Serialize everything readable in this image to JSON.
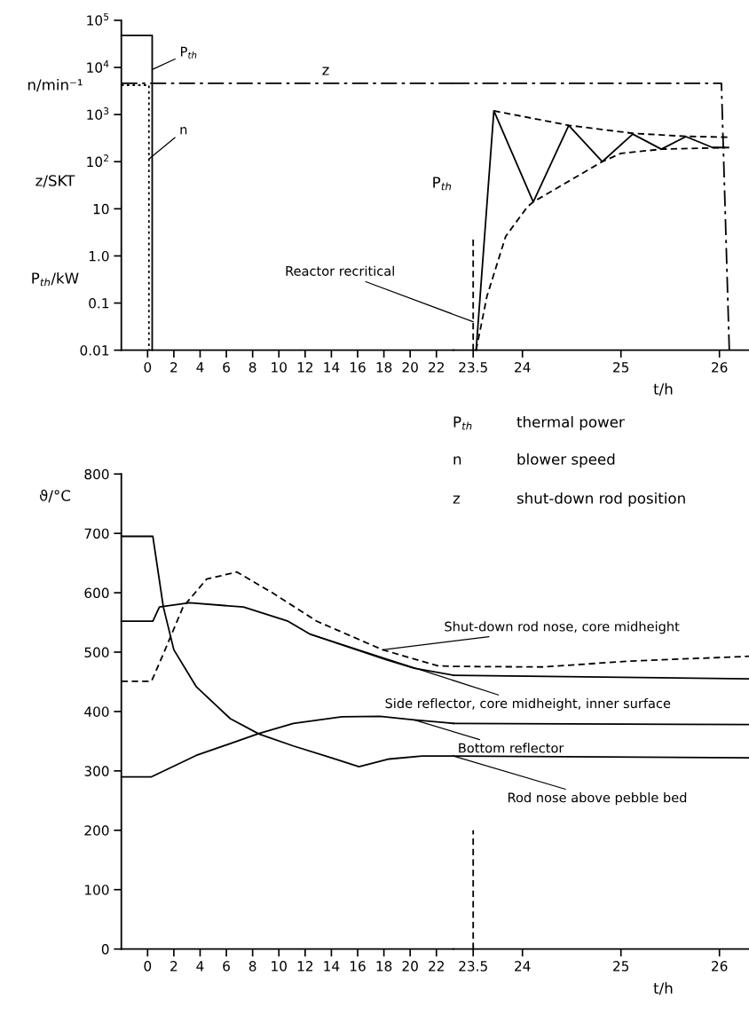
{
  "chart_data": [
    {
      "type": "line",
      "log": "y",
      "xlim": [
        -2,
        23.3
      ],
      "ylim": [
        0.01,
        100000
      ],
      "xticks": [
        0,
        2,
        4,
        6,
        8,
        10,
        12,
        14,
        16,
        18,
        20,
        22
      ],
      "yticks": [
        {
          "value": 0.01,
          "label": "0.01"
        },
        0.1,
        {
          "value": 1,
          "label": "1.0"
        },
        10,
        {
          "value": 100,
          "label": "10$^{2}$"
        },
        {
          "value": 1000,
          "label": "10$^{3}$"
        },
        {
          "value": 10000,
          "label": "10$^{4}$"
        },
        {
          "value": 100000,
          "label": "10$^{5}$"
        }
      ],
      "marker": "none",
      "series": [
        {
          "color": "#000000",
          "line_style": "solid",
          "x": [
            -2,
            0.35,
            0.35
          ],
          "values": [
            48000,
            48000,
            0.01
          ]
        },
        {
          "color": "#000000",
          "line_style": "dotted",
          "x": [
            -2,
            0.1,
            0.1
          ],
          "values": [
            4200,
            4200,
            0.01
          ]
        },
        {
          "color": "#000000",
          "line_style": "dashdot",
          "x": [
            -2,
            23.3
          ],
          "values": [
            4600,
            4600
          ]
        }
      ],
      "annotations": [
        "n/min⁻¹",
        "z/SKT",
        "P$_{th}$/kW",
        "z",
        "P$_{th}$",
        {
          "text": "P$_{th}$",
          "x": 0.35,
          "y": 9000
        },
        {
          "text": "n",
          "x": 0.1,
          "y": 114
        }
      ]
    },
    {
      "type": "line",
      "log": "y",
      "xlim": [
        23.3,
        26.3
      ],
      "ylim": [
        0.01,
        100000
      ],
      "tick_labels": "x",
      "xticks": [
        23.5,
        24,
        25,
        26
      ],
      "xlabel": "t/h",
      "marker": "none",
      "series": [
        {
          "color": "#000000",
          "line_style": "solid",
          "x": [
            23.53,
            23.71,
            24.11,
            24.47,
            24.81,
            25.12,
            25.41,
            25.66,
            25.93,
            26.05
          ],
          "values": [
            0.01,
            1200,
            14,
            590,
            100,
            385,
            184,
            340,
            200,
            200
          ]
        },
        {
          "color": "#000000",
          "line_style": "dashdot",
          "x": [
            23.3,
            26.02,
            26.1
          ],
          "values": [
            4600,
            4600,
            0.01
          ]
        },
        {
          "color": "#000000",
          "line_style": "dashed",
          "x": [
            23.71,
            24.47,
            25.12,
            25.66,
            26.1
          ],
          "values": [
            1200,
            590,
            400,
            345,
            330
          ]
        },
        {
          "color": "#000000",
          "line_style": "dashed",
          "x": [
            23.53,
            23.64,
            23.83,
            24.05,
            24.11,
            24.81,
            25.0,
            25.41,
            26.1
          ],
          "values": [
            0.01,
            0.14,
            2.6,
            11,
            14,
            100,
            150,
            184,
            200
          ]
        }
      ],
      "ref_lines": [
        {
          "axis": "x",
          "value": 23.5,
          "line_style": "dashed",
          "color": "#000000"
        }
      ],
      "annotations": [
        "P$_{th}$",
        "thermal power",
        "n",
        "blower speed",
        "z",
        "shut-down rod position",
        {
          "text": "Reactor recritical",
          "x": 23.5,
          "y": 0.04
        }
      ]
    },
    {
      "type": "line",
      "xlim": [
        -2,
        23.3
      ],
      "ylim": [
        0,
        800
      ],
      "xticks": [
        0,
        2,
        4,
        6,
        8,
        10,
        12,
        14,
        16,
        18,
        20,
        22
      ],
      "yticks": [
        0,
        100,
        200,
        300,
        400,
        500,
        600,
        700,
        800
      ],
      "ylabel": "ϑ/°C",
      "marker": "none",
      "series": [
        {
          "color": "#000000",
          "line_style": "solid",
          "x": [
            -2,
            0.4,
            1.2,
            2.0,
            3.7,
            6.3,
            8.5,
            11.1,
            14,
            16.1,
            18.4,
            20.9,
            23.3
          ],
          "values": [
            695,
            695,
            576,
            504,
            442,
            388,
            362,
            342,
            322,
            307,
            320,
            325,
            325
          ]
        },
        {
          "color": "#000000",
          "line_style": "solid",
          "x": [
            -2,
            0.3,
            3.7,
            8.5,
            11.1,
            14.8,
            17.7,
            20.3,
            22.8,
            23.3
          ],
          "values": [
            290,
            290,
            326,
            363,
            380,
            391,
            392,
            386,
            381,
            380
          ]
        },
        {
          "color": "#000000",
          "line_style": "solid",
          "x": [
            -2,
            0.4,
            0.9,
            3.2,
            7.3,
            10.7,
            12.4,
            18.2,
            20.3,
            23.3
          ],
          "values": [
            552,
            552,
            576,
            583,
            576,
            552,
            530,
            487,
            473,
            461
          ]
        },
        {
          "color": "#000000",
          "line_style": "dashed",
          "x": [
            -2,
            0.3,
            1.2,
            2.7,
            4.5,
            6.8,
            9.5,
            12.9,
            17.9,
            22.1,
            23.3
          ],
          "values": [
            451,
            451,
            497,
            576,
            623,
            635,
            600,
            552,
            504,
            477,
            476
          ]
        }
      ],
      "annotations": [
        {
          "text": "Shut-down rod nose, core midheight",
          "x": 17.9,
          "y": 504
        },
        {
          "text": "Side reflector, core midheight, inner surface",
          "x": 12.4,
          "y": 530
        },
        {
          "text": "Bottom reflector",
          "x": 20.3,
          "y": 386
        },
        {
          "text": "Rod nose above pebble bed",
          "x": 23.3,
          "y": 325
        }
      ]
    },
    {
      "type": "line",
      "xlim": [
        23.3,
        26.3
      ],
      "ylim": [
        0,
        800
      ],
      "tick_labels": "x",
      "xticks": [
        23.5,
        24,
        25,
        26
      ],
      "xlabel": "t/h",
      "marker": "none",
      "series": [
        {
          "color": "#000000",
          "line_style": "solid",
          "x": [
            23.3,
            26.3
          ],
          "values": [
            325,
            322
          ]
        },
        {
          "color": "#000000",
          "line_style": "solid",
          "x": [
            23.3,
            26.3
          ],
          "values": [
            380,
            378
          ]
        },
        {
          "color": "#000000",
          "line_style": "solid",
          "x": [
            23.3,
            26.3
          ],
          "values": [
            461,
            455
          ]
        },
        {
          "color": "#000000",
          "line_style": "dashed",
          "x": [
            23.3,
            24.2,
            25.1,
            26.3
          ],
          "values": [
            476,
            475,
            485,
            493
          ]
        }
      ],
      "ref_lines": [
        {
          "axis": "x",
          "value": 23.5,
          "line_style": "dashed",
          "color": "#000000"
        }
      ]
    }
  ]
}
